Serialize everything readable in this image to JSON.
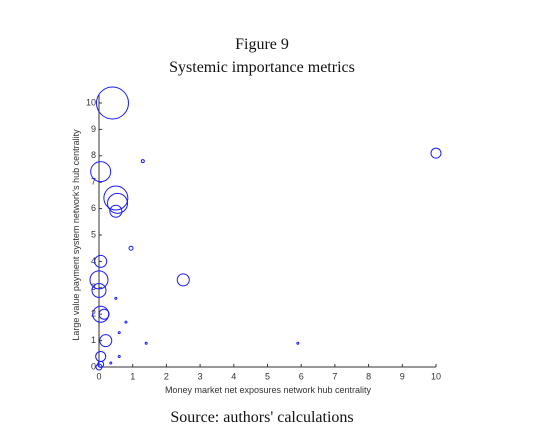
{
  "chart_data": {
    "type": "scatter",
    "title": "Figure 9",
    "subtitle": "Systemic importance metrics",
    "x_label": "Money market net exposures network hub centrality",
    "y_label": "Large value payment system network's hub centrality",
    "source": "Source: authors' calculations",
    "color": "#1a1aff",
    "xlim": [
      0,
      10
    ],
    "ylim": [
      0,
      10
    ],
    "xticks": [
      0,
      1,
      2,
      3,
      4,
      5,
      6,
      7,
      8,
      9,
      10
    ],
    "yticks": [
      0,
      1,
      2,
      3,
      4,
      5,
      6,
      7,
      8,
      9,
      10
    ],
    "x": [
      0.4,
      1.3,
      10.0,
      0.05,
      0.5,
      0.55,
      0.5,
      0.95,
      2.5,
      0.05,
      0.0,
      0.0,
      0.05,
      0.15,
      0.5,
      0.8,
      0.6,
      0.2,
      1.4,
      5.9,
      0.05,
      0.6,
      0.35,
      0.05,
      0.0
    ],
    "values": [
      10.0,
      7.8,
      8.1,
      7.4,
      6.4,
      6.2,
      5.9,
      4.5,
      3.3,
      4.0,
      3.3,
      2.9,
      2.0,
      2.0,
      2.6,
      1.7,
      1.3,
      1.0,
      0.9,
      0.9,
      0.4,
      0.4,
      0.15,
      0.1,
      0.0
    ],
    "sizes": [
      16,
      1.5,
      5,
      10,
      12,
      10,
      6,
      2,
      6,
      6,
      9,
      7,
      8,
      5,
      1,
      1,
      1,
      6,
      1,
      1,
      5,
      1,
      1,
      3,
      3
    ]
  }
}
